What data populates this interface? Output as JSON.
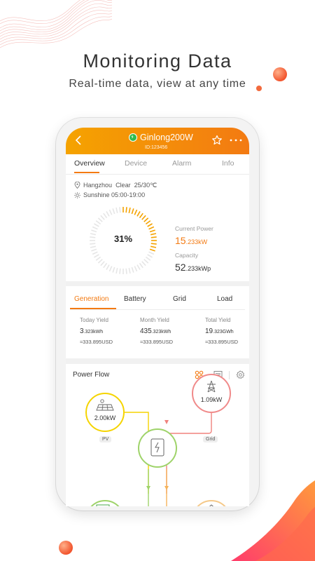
{
  "promo": {
    "title": "Monitoring Data",
    "subtitle": "Real-time data, view at any time"
  },
  "colors": {
    "accent": "#f37a12",
    "header_gradient_start": "#f5a300",
    "pv_ring": "#f5d400",
    "grid_ring": "#f08a8a",
    "status_green": "#2dbb4e"
  },
  "header": {
    "device_name": "Ginlong200W",
    "device_id": "ID:123456",
    "icons": [
      "chevron-left-icon",
      "star-icon",
      "more-icon"
    ]
  },
  "tabs": [
    {
      "label": "Overview",
      "active": true
    },
    {
      "label": "Device",
      "active": false
    },
    {
      "label": "Alarm",
      "active": false
    },
    {
      "label": "Info",
      "active": false
    }
  ],
  "overview": {
    "location": "Hangzhou",
    "weather": "Clear",
    "temperature": "25/30℃",
    "sunshine": "Sunshine 05:00-19:00",
    "gauge_percent_value": 31,
    "gauge_percent_label": "31%",
    "current_power_label": "Current Power",
    "current_power_value": "15",
    "current_power_unit": ".233kW",
    "capacity_label": "Capacity",
    "capacity_value": "52",
    "capacity_unit": ".233kWp"
  },
  "generation": {
    "tabs": [
      {
        "label": "Generation",
        "active": true
      },
      {
        "label": "Battery",
        "active": false
      },
      {
        "label": "Grid",
        "active": false
      },
      {
        "label": "Load",
        "active": false
      }
    ],
    "yields": [
      {
        "label": "Today Yield",
        "value": "3",
        "unit": ".323kWh",
        "usd": "≈333.895USD"
      },
      {
        "label": "Month Yield",
        "value": "435",
        "unit": ".323kWh",
        "usd": "≈333.895USD"
      },
      {
        "label": "Total Yield",
        "value": "19",
        "unit": ".323GWh",
        "usd": "≈333.895USD"
      }
    ]
  },
  "power_flow": {
    "title": "Power Flow",
    "pv": {
      "value": "2.00kW",
      "label": "PV"
    },
    "grid": {
      "value": "1.09kW",
      "label": "Grid"
    }
  }
}
